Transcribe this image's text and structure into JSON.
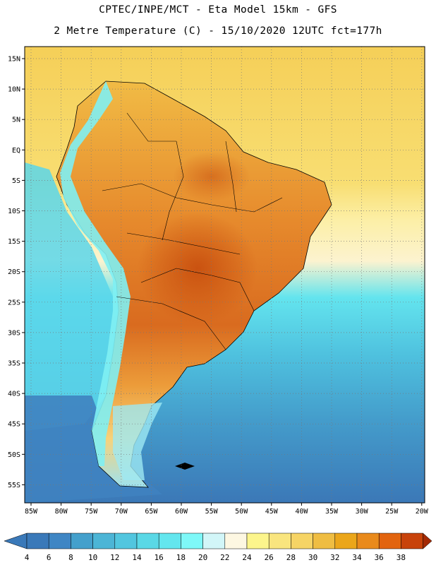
{
  "header": {
    "line1": "CPTEC/INPE/MCT -  Eta Model 15km - GFS",
    "line2": "2 Metre Temperature (C) - 15/10/2020 12UTC fct=177h"
  },
  "lat_labels": [
    "15N",
    "10N",
    "5N",
    "EQ",
    "5S",
    "10S",
    "15S",
    "20S",
    "25S",
    "30S",
    "35S",
    "40S",
    "45S",
    "50S",
    "55S"
  ],
  "lon_labels": [
    "85W",
    "80W",
    "75W",
    "70W",
    "65W",
    "60W",
    "55W",
    "50W",
    "45W",
    "40W",
    "35W",
    "30W",
    "25W",
    "20W"
  ],
  "colorbar": {
    "labels": [
      "4",
      "6",
      "8",
      "10",
      "12",
      "14",
      "16",
      "18",
      "20",
      "22",
      "24",
      "26",
      "28",
      "30",
      "32",
      "34",
      "36",
      "38"
    ],
    "colors": [
      "#3a79b9",
      "#3f86c4",
      "#44a0cc",
      "#4cb5d6",
      "#52c6df",
      "#5ad8e6",
      "#63e6ee",
      "#7ef8f8",
      "#d2f6f8",
      "#fdf7e2",
      "#fcf58c",
      "#f9e57e",
      "#f6d465",
      "#efbd42",
      "#eba61a",
      "#e98a1c",
      "#e2640f",
      "#c8430b",
      "#a42a05"
    ]
  },
  "colors": {
    "ocean_cold": "#3a74b4",
    "ocean_mid": "#4bb3d6",
    "ocean_cool": "#5ad1e6",
    "ocean_warm": "#f3cd55",
    "ocean_hot": "#f2c645",
    "land_hot": "#e2782a",
    "land_hotter": "#d05e16",
    "andes": "#7ff0f3"
  }
}
